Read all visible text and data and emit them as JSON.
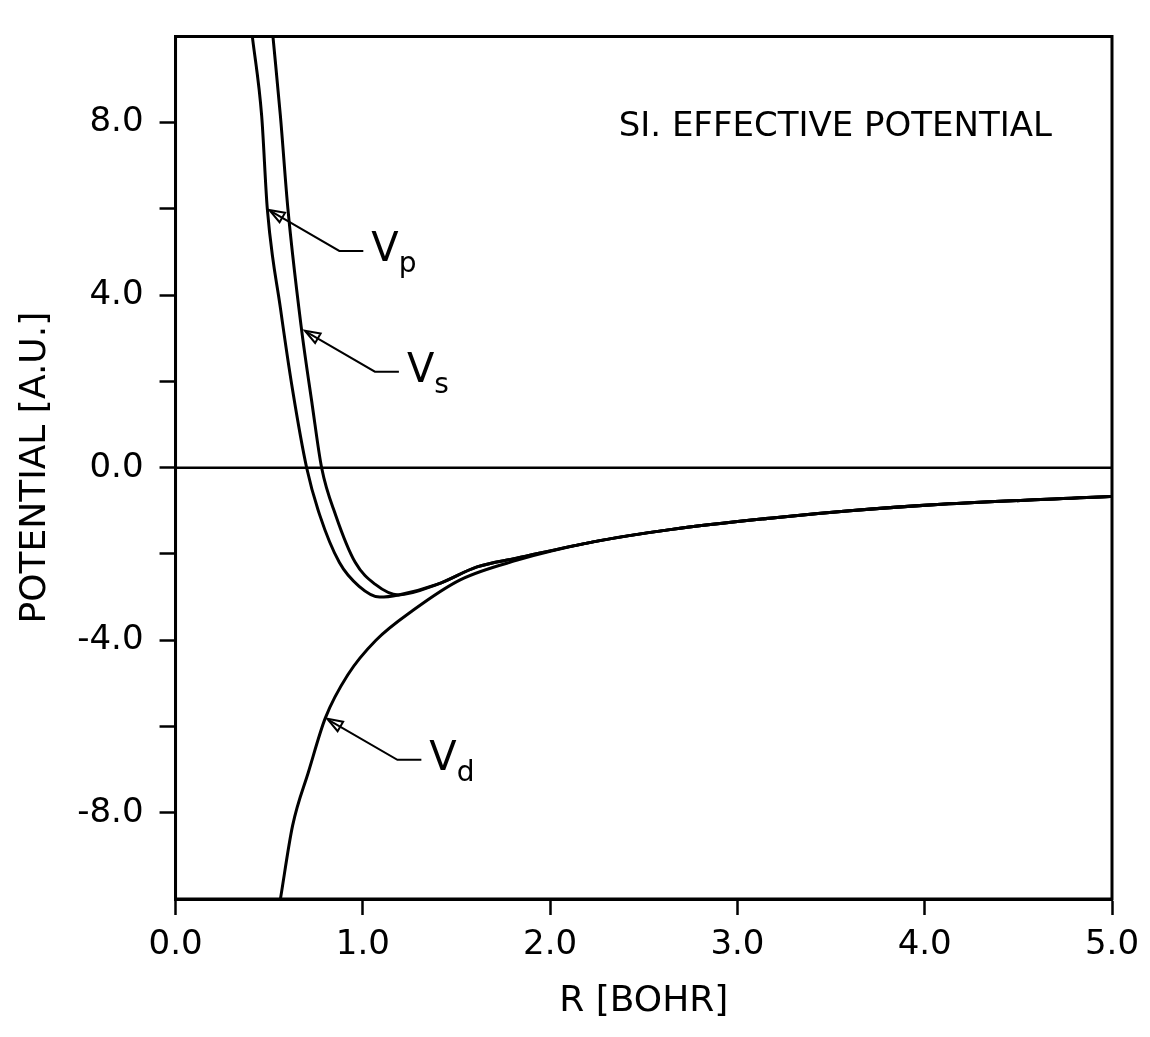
{
  "chart_data": {
    "type": "line",
    "title": "SI. EFFECTIVE POTENTIAL",
    "xlabel": "R [BOHR]",
    "ylabel": "POTENTIAL [A.U.]",
    "xlim": [
      0,
      5
    ],
    "ylim": [
      -10,
      10
    ],
    "xticks": [
      {
        "value": 0,
        "label": "0.0"
      },
      {
        "value": 1,
        "label": "1.0"
      },
      {
        "value": 2,
        "label": "2.0"
      },
      {
        "value": 3,
        "label": "3.0"
      },
      {
        "value": 4,
        "label": "4.0"
      },
      {
        "value": 5,
        "label": "5.0"
      }
    ],
    "yticks": [
      {
        "value": -8,
        "label": "-8.0"
      },
      {
        "value": -6,
        "label": null
      },
      {
        "value": -4,
        "label": "-4.0"
      },
      {
        "value": -2,
        "label": null
      },
      {
        "value": 0,
        "label": "0.0"
      },
      {
        "value": 2,
        "label": null
      },
      {
        "value": 4,
        "label": "4.0"
      },
      {
        "value": 6,
        "label": null
      },
      {
        "value": 8,
        "label": "8.0"
      }
    ],
    "grid": false,
    "legend": false,
    "marker": "none",
    "line_style": "solid",
    "ref_lines": [
      {
        "axis": "y",
        "value": 0,
        "color": "#000000"
      }
    ],
    "annotations": [
      {
        "text": "V$_{p}$",
        "x": 0.49,
        "y": 6.0
      },
      {
        "text": "V$_{s}$",
        "x": 0.68,
        "y": 3.2
      },
      {
        "text": "V$_{d}$",
        "x": 0.8,
        "y": -5.8
      }
    ],
    "series": [
      {
        "color": "#000000",
        "x": [
          0.41,
          0.46,
          0.49,
          0.56,
          0.625,
          0.7,
          0.77,
          0.875,
          0.98,
          1.09,
          1.19,
          1.4,
          1.61,
          1.82,
          2.23,
          2.65,
          3.2,
          3.6,
          4.09,
          4.99
        ],
        "values": [
          10,
          8.15,
          6.0,
          3.7,
          1.8,
          0,
          -1.1,
          -2.2,
          -2.75,
          -3.0,
          -2.95,
          -2.7,
          -2.3,
          -2.1,
          -1.72,
          -1.43,
          -1.16,
          -1.0,
          -0.85,
          -0.67
        ]
      },
      {
        "color": "#000000",
        "x": [
          0.52,
          0.56,
          0.6,
          0.67,
          0.73,
          0.78,
          0.855,
          0.96,
          1.065,
          1.19,
          1.4,
          1.61,
          1.82,
          2.23,
          2.65,
          3.2,
          3.6,
          4.09,
          4.99
        ],
        "values": [
          10,
          8.15,
          6.0,
          3.3,
          1.45,
          0,
          -1.1,
          -2.2,
          -2.7,
          -2.95,
          -2.7,
          -2.3,
          -2.1,
          -1.72,
          -1.43,
          -1.16,
          -1.0,
          -0.85,
          -0.67
        ]
      },
      {
        "color": "#000000",
        "x": [
          0.56,
          0.625,
          0.71,
          0.8,
          0.92,
          1.07,
          1.27,
          1.52,
          1.82,
          2.23,
          2.65,
          3.2,
          3.6,
          4.09,
          4.99
        ],
        "values": [
          -10,
          -8.3,
          -7.05,
          -5.8,
          -4.8,
          -4.0,
          -3.3,
          -2.6,
          -2.15,
          -1.72,
          -1.43,
          -1.16,
          -1.0,
          -0.85,
          -0.67
        ]
      }
    ]
  }
}
